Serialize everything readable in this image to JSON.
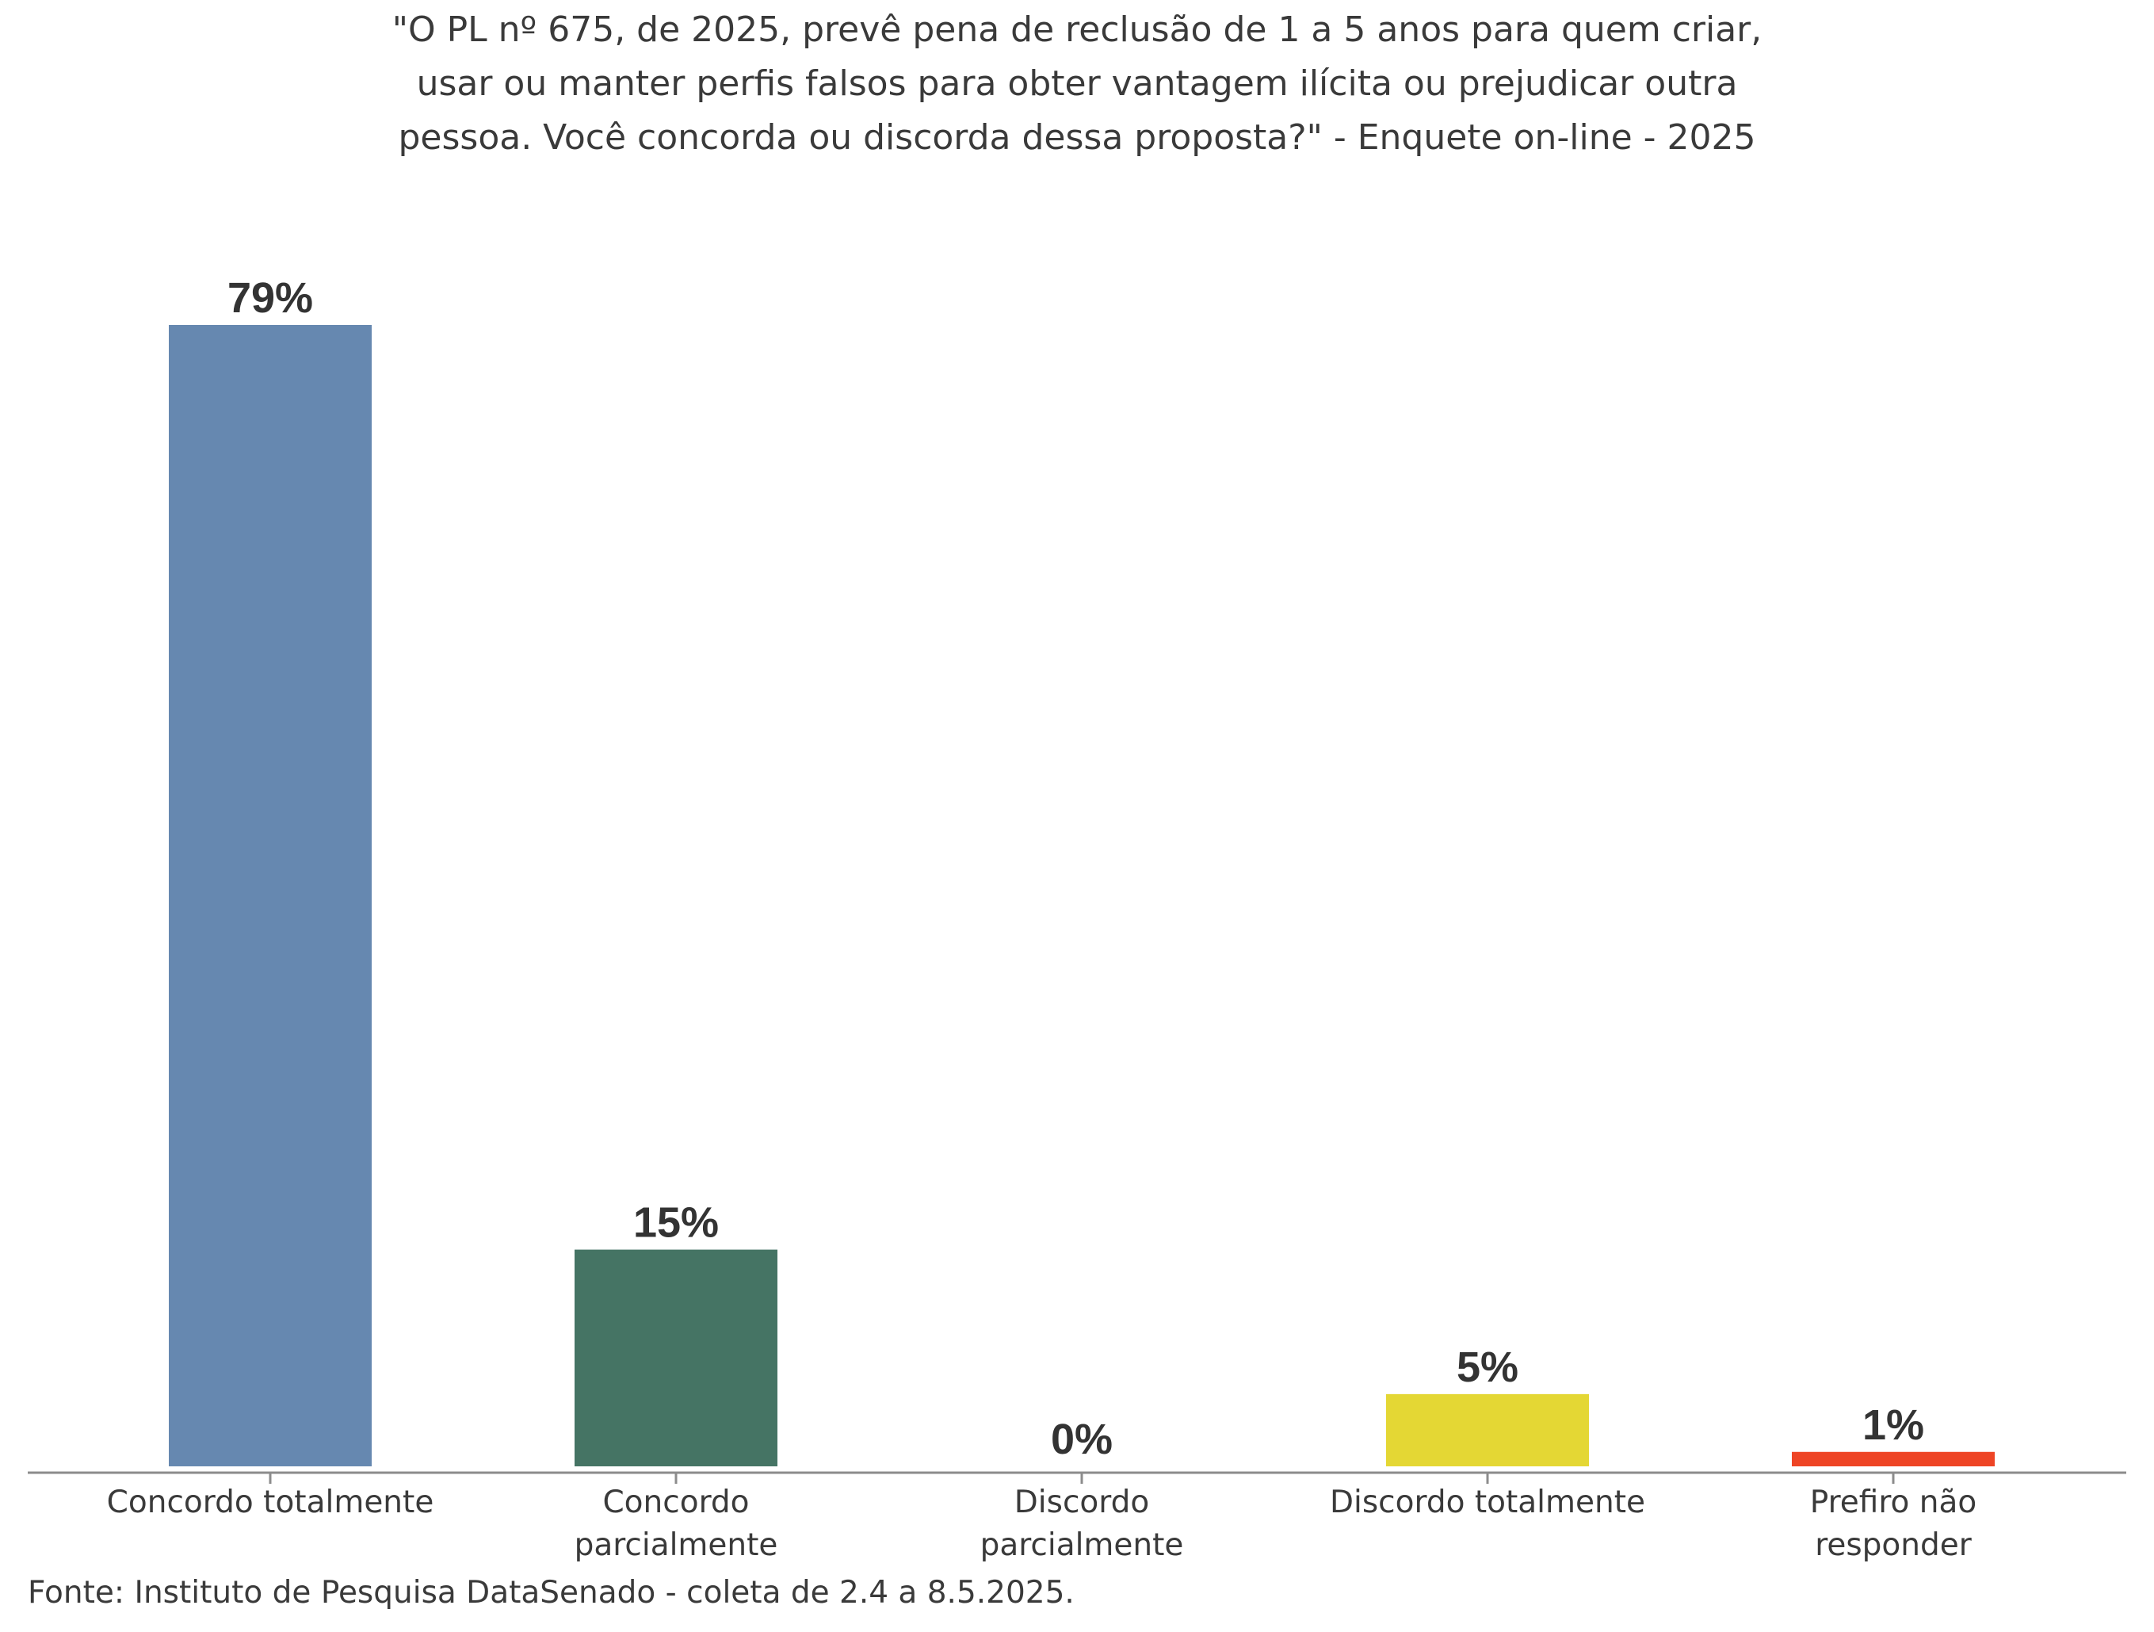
{
  "chart_data": {
    "type": "bar",
    "title_lines": [
      "\"O PL nº 675, de 2025, prevê pena de reclusão de 1 a 5 anos para quem criar,",
      "usar ou manter perfis falsos para obter vantagem ilícita ou prejudicar outra",
      "pessoa. Você concorda ou discorda dessa proposta?\" - Enquete on-line - 2025"
    ],
    "categories": [
      [
        "Concordo totalmente"
      ],
      [
        "Concordo",
        "parcialmente"
      ],
      [
        "Discordo",
        "parcialmente"
      ],
      [
        "Discordo totalmente"
      ],
      [
        "Prefiro não",
        "responder"
      ]
    ],
    "values": [
      79,
      15,
      0,
      5,
      1
    ],
    "value_labels": [
      "79%",
      "15%",
      "0%",
      "5%",
      "1%"
    ],
    "colors": [
      "#6688b0",
      "#457464",
      "#ffffff",
      "#e4d734",
      "#ee4425"
    ],
    "ylim": [
      0,
      79
    ],
    "grid": false,
    "legend": "none",
    "source": "Fonte: Instituto de Pesquisa DataSenado - coleta de 2.4 a 8.5.2025."
  }
}
